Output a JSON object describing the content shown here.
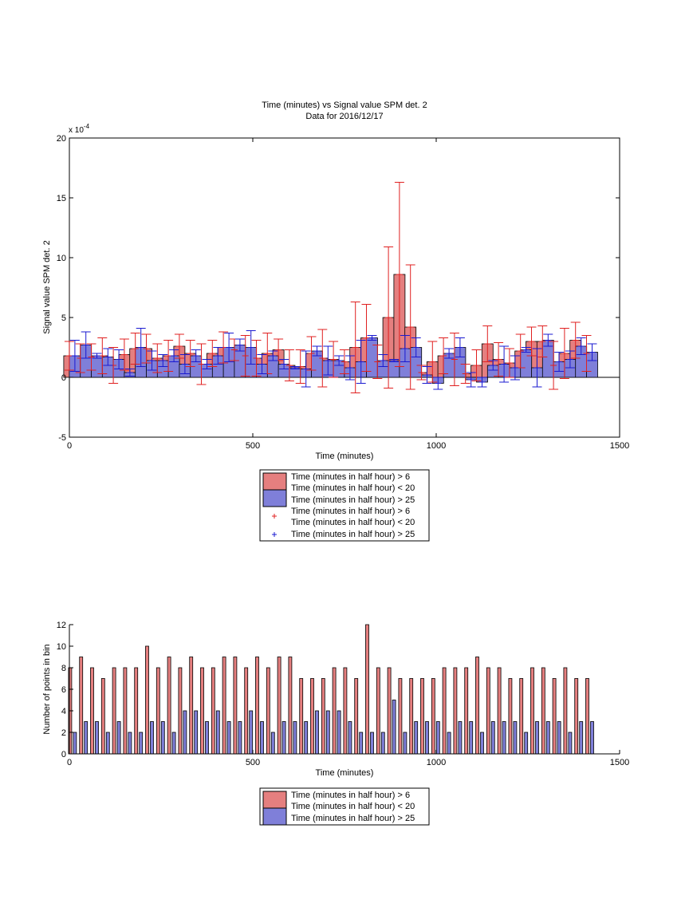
{
  "colors": {
    "red_face": "#e57f7f",
    "blue_face": "#7f7fd9",
    "red_err": "#e02020",
    "blue_err": "#1a1ad0",
    "edge": "#000000"
  },
  "chart_data": [
    {
      "type": "bar",
      "title": "Time (minutes) vs Signal value SPM det. 2",
      "subtitle": "Data for 2016/12/17",
      "xlabel": "Time (minutes)",
      "ylabel": "Signal value SPM det. 2",
      "y_exponent": "x 10",
      "y_exponent_power": "-4",
      "scale": 0.0001,
      "xlim": [
        0,
        1500
      ],
      "ylim": [
        -5,
        20
      ],
      "xticks": [
        0,
        500,
        1000,
        1500
      ],
      "yticks": [
        -5,
        0,
        5,
        10,
        15,
        20
      ],
      "x": [
        15,
        45,
        75,
        105,
        135,
        165,
        195,
        225,
        255,
        285,
        315,
        345,
        375,
        405,
        435,
        465,
        495,
        525,
        555,
        585,
        615,
        645,
        675,
        705,
        735,
        765,
        795,
        825,
        855,
        885,
        915,
        945,
        975,
        1005,
        1035,
        1065,
        1095,
        1125,
        1155,
        1185,
        1215,
        1245,
        1275,
        1305,
        1335,
        1365,
        1395,
        1425
      ],
      "legend": [
        "Time (minutes in half hour) > 6",
        "Time (minutes in half hour) < 20",
        "Time (minutes in half hour) > 25",
        "Time (minutes in half hour) > 6",
        "Time (minutes in half hour) < 20",
        "Time (minutes in half hour) > 25"
      ],
      "series": [
        {
          "name": "Time (minutes in half hour) > 6 Time (minutes in half hour) < 20",
          "values": [
            1.8,
            1.6,
            1.7,
            1.8,
            1.0,
            1.9,
            2.4,
            2.4,
            1.6,
            1.8,
            2.6,
            2.0,
            1.1,
            2.0,
            2.5,
            2.3,
            1.8,
            1.6,
            2.0,
            2.3,
            1.0,
            0.9,
            2.0,
            1.6,
            1.5,
            1.3,
            2.5,
            3.3,
            1.3,
            5.0,
            8.6,
            4.2,
            0.4,
            1.3,
            1.8,
            1.5,
            0.3,
            1.0,
            2.8,
            1.5,
            1.2,
            2.2,
            3.0,
            3.0,
            1.0,
            2.0,
            3.1,
            2.0
          ],
          "err": [
            1.2,
            1.2,
            1.1,
            1.5,
            1.5,
            1.3,
            1.3,
            1.2,
            1.2,
            1.3,
            1.0,
            1.1,
            1.7,
            1.1,
            1.3,
            0.9,
            1.7,
            1.5,
            1.7,
            0.9,
            1.3,
            1.4,
            1.4,
            2.4,
            1.5,
            1.0,
            3.8,
            2.8,
            1.4,
            5.9,
            7.7,
            5.2,
            0.6,
            1.7,
            1.5,
            2.2,
            0.8,
            1.3,
            1.5,
            1.4,
            1.2,
            1.4,
            1.2,
            1.3,
            2.0,
            2.1,
            1.5,
            1.5
          ]
        },
        {
          "name": "Time (minutes in half hour) > 25",
          "values": [
            1.8,
            2.7,
            1.8,
            1.7,
            1.5,
            0.4,
            2.5,
            1.4,
            1.4,
            1.8,
            1.1,
            1.8,
            1.1,
            1.8,
            2.5,
            2.7,
            2.5,
            1.1,
            1.8,
            1.1,
            0.8,
            0.7,
            2.2,
            1.4,
            1.4,
            0.8,
            1.3,
            3.3,
            1.4,
            1.4,
            2.4,
            2.5,
            0.2,
            -0.5,
            2.0,
            2.5,
            -0.2,
            -0.4,
            1.0,
            1.1,
            0.8,
            2.3,
            0.8,
            3.1,
            1.3,
            1.5,
            2.6,
            2.1
          ],
          "err": [
            1.3,
            1.1,
            0.2,
            0.7,
            0.8,
            0.3,
            1.6,
            0.8,
            0.5,
            0.5,
            0.8,
            0.5,
            0.4,
            0.7,
            1.2,
            0.5,
            1.4,
            0.8,
            0.4,
            0.4,
            0.1,
            1.5,
            0.4,
            1.2,
            0.4,
            1.0,
            1.8,
            0.2,
            0.5,
            0.1,
            1.1,
            0.8,
            0.7,
            0.5,
            0.4,
            0.8,
            0.6,
            0.4,
            0.4,
            1.5,
            1.0,
            0.2,
            1.6,
            0.5,
            0.8,
            0.7,
            0.7,
            0.7
          ]
        }
      ]
    },
    {
      "type": "bar",
      "xlabel": "Time (minutes)",
      "ylabel": "Number of points in bin",
      "xlim": [
        0,
        1500
      ],
      "ylim": [
        0,
        12
      ],
      "xticks": [
        0,
        500,
        1000,
        1500
      ],
      "yticks": [
        0,
        2,
        4,
        6,
        8,
        10,
        12
      ],
      "x": [
        15,
        45,
        75,
        105,
        135,
        165,
        195,
        225,
        255,
        285,
        315,
        345,
        375,
        405,
        435,
        465,
        495,
        525,
        555,
        585,
        615,
        645,
        675,
        705,
        735,
        765,
        795,
        825,
        855,
        885,
        915,
        945,
        975,
        1005,
        1035,
        1065,
        1095,
        1125,
        1155,
        1185,
        1215,
        1245,
        1275,
        1305,
        1335,
        1365,
        1395,
        1425
      ],
      "legend": [
        "Time (minutes in half hour) > 6",
        "Time (minutes in half hour) < 20",
        "Time (minutes in half hour) > 25"
      ],
      "series": [
        {
          "name": "Time (minutes in half hour) > 6 Time (minutes in half hour) < 20",
          "values": [
            8,
            9,
            8,
            7,
            8,
            8,
            8,
            10,
            8,
            9,
            8,
            9,
            8,
            8,
            9,
            9,
            8,
            9,
            8,
            9,
            9,
            7,
            7,
            7,
            8,
            8,
            7,
            12,
            8,
            8,
            7,
            7,
            7,
            7,
            8,
            8,
            8,
            9,
            8,
            8,
            7,
            7,
            8,
            8,
            7,
            8,
            7,
            7
          ]
        },
        {
          "name": "Time (minutes in half hour) > 25",
          "values": [
            2,
            3,
            3,
            2,
            3,
            2,
            2,
            3,
            3,
            2,
            4,
            4,
            3,
            4,
            3,
            3,
            4,
            3,
            2,
            3,
            3,
            3,
            4,
            4,
            4,
            3,
            2,
            2,
            2,
            5,
            2,
            3,
            3,
            3,
            2,
            3,
            3,
            2,
            3,
            3,
            3,
            2,
            3,
            3,
            3,
            2,
            3,
            3
          ]
        }
      ]
    }
  ]
}
